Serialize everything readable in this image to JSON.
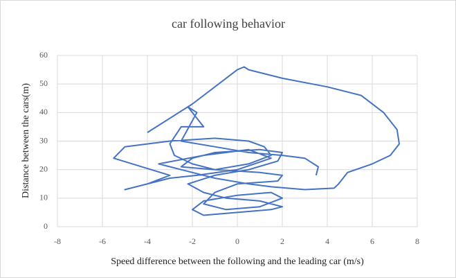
{
  "chart_data": {
    "type": "line",
    "title": "car following behavior",
    "x_label": "Speed difference between the following and the leading car (m/s)",
    "y_label": "Distance between the cars(m)",
    "xlim": [
      -8,
      8
    ],
    "xticks": [
      -8,
      -6,
      -4,
      -2,
      0,
      2,
      4,
      6,
      8
    ],
    "ylim": [
      0,
      60
    ],
    "yticks": [
      0,
      10,
      20,
      30,
      40,
      50,
      60
    ],
    "grid": true,
    "series": [
      {
        "color": "#4472c4",
        "x": [
          -4,
          -2,
          0,
          0.3,
          0.5,
          2,
          4,
          5.5,
          6.5,
          7.1,
          7.2,
          6.8,
          6,
          4.9,
          4.5,
          4.3,
          3,
          1.5,
          0.5,
          -1,
          -2.5,
          -3.5,
          -1.5,
          0.5,
          1.5,
          0,
          -1.8,
          -3,
          -4.5,
          -5,
          -4,
          -3,
          -5.5,
          -5,
          -3,
          -1,
          0.5,
          1.2,
          1.5,
          0.5,
          -1,
          -2.5,
          -2,
          -1,
          1,
          2,
          1.8,
          0.5,
          -1,
          -2.2,
          -1.5,
          -0.5,
          1,
          2,
          1.5,
          0,
          -1.5,
          -2,
          -1.5,
          0,
          1.5,
          2,
          1,
          -0.5,
          -1.5,
          -1,
          0,
          1.8,
          2,
          1,
          -1,
          -2,
          -2.8,
          -3,
          -2.5,
          -1.5,
          -2.2,
          -1.8,
          -2.5,
          -1,
          0.5,
          2,
          3,
          3.6,
          3.5
        ],
        "values": [
          33,
          43,
          55,
          56,
          55,
          52,
          49,
          46,
          40,
          34,
          29,
          25,
          22,
          19,
          15,
          13.5,
          13,
          14,
          15,
          17,
          20,
          22,
          25,
          27,
          24,
          20,
          18,
          17,
          14,
          13,
          15,
          18,
          24,
          28,
          30,
          31,
          30,
          28,
          25,
          22,
          20,
          21,
          24,
          26,
          27,
          26,
          23,
          20,
          18,
          15,
          12,
          10,
          9,
          7,
          6,
          5,
          4,
          6,
          9,
          11,
          12,
          10,
          7,
          6,
          8,
          12,
          15,
          16,
          18,
          19,
          20,
          22,
          25,
          29,
          35,
          35,
          42,
          40,
          30,
          28,
          26,
          25,
          24,
          21,
          18
        ]
      }
    ]
  }
}
